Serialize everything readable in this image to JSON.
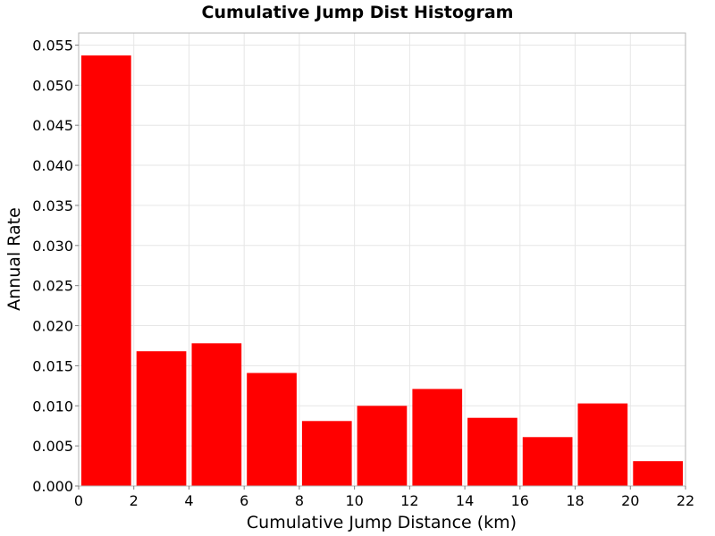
{
  "chart_data": {
    "type": "bar",
    "title": "Cumulative Jump Dist Histogram",
    "xlabel": "Cumulative Jump Distance (km)",
    "ylabel": "Annual Rate",
    "bin_width": 2,
    "x": [
      1,
      3,
      5,
      7,
      9,
      11,
      13,
      15,
      17,
      19,
      21
    ],
    "values": [
      0.0537,
      0.0168,
      0.0178,
      0.0141,
      0.0081,
      0.01,
      0.0121,
      0.0085,
      0.0061,
      0.0103,
      0.0031
    ],
    "xlim": [
      0,
      22
    ],
    "ylim": [
      0,
      0.0565
    ],
    "xticks": [
      0,
      2,
      4,
      6,
      8,
      10,
      12,
      14,
      16,
      18,
      20,
      22
    ],
    "yticks": [
      0.0,
      0.005,
      0.01,
      0.015,
      0.02,
      0.025,
      0.03,
      0.035,
      0.04,
      0.045,
      0.05,
      0.055
    ],
    "xtick_labels": [
      "0",
      "2",
      "4",
      "6",
      "8",
      "10",
      "12",
      "14",
      "16",
      "18",
      "20",
      "22"
    ],
    "ytick_labels": [
      "0.000",
      "0.005",
      "0.010",
      "0.015",
      "0.020",
      "0.025",
      "0.030",
      "0.035",
      "0.040",
      "0.045",
      "0.050",
      "0.055"
    ],
    "bar_color": "#ff0000",
    "grid": true,
    "legend": "none"
  }
}
